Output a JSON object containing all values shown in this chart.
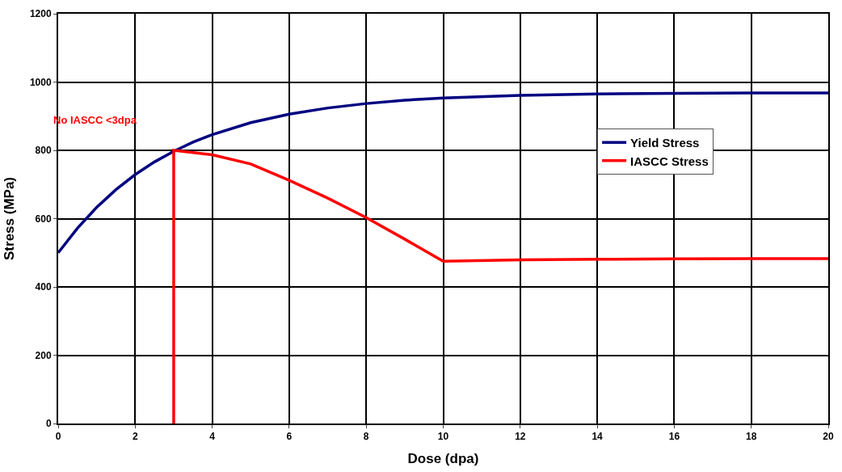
{
  "chart_data": {
    "type": "line",
    "xlabel": "Dose (dpa)",
    "ylabel": "Stress (MPa)",
    "annotations": [
      "No IASCC <3dpa"
    ],
    "series": [
      {
        "name": "Yield Stress",
        "color": "#000080",
        "x": [
          0,
          0.5,
          1,
          1.5,
          2,
          2.5,
          3,
          3.5,
          4,
          5,
          6,
          7,
          8,
          9,
          10,
          12,
          14,
          16,
          18,
          20
        ],
        "values": [
          500,
          572,
          633,
          685,
          729,
          766,
          797,
          824,
          846,
          881,
          906,
          924,
          937,
          947,
          953,
          961,
          965,
          967,
          968,
          968
        ]
      },
      {
        "name": "IASCC Stress",
        "color": "#ff0000",
        "x": [
          3,
          3,
          4,
          5,
          6,
          7,
          8,
          9,
          10,
          12,
          14,
          16,
          18,
          20
        ],
        "values": [
          0,
          800,
          787,
          760,
          712,
          660,
          603,
          540,
          475,
          479,
          481,
          482,
          483,
          483
        ]
      }
    ],
    "xlim": [
      0,
      20
    ],
    "xticks": [
      0,
      2,
      4,
      6,
      8,
      10,
      12,
      14,
      16,
      18,
      20
    ],
    "ylim": [
      0,
      1200
    ],
    "yticks": [
      0,
      200,
      400,
      600,
      800,
      1000,
      1200
    ],
    "grid": true,
    "legend": "right",
    "marker": "none",
    "line_style": "solid"
  }
}
